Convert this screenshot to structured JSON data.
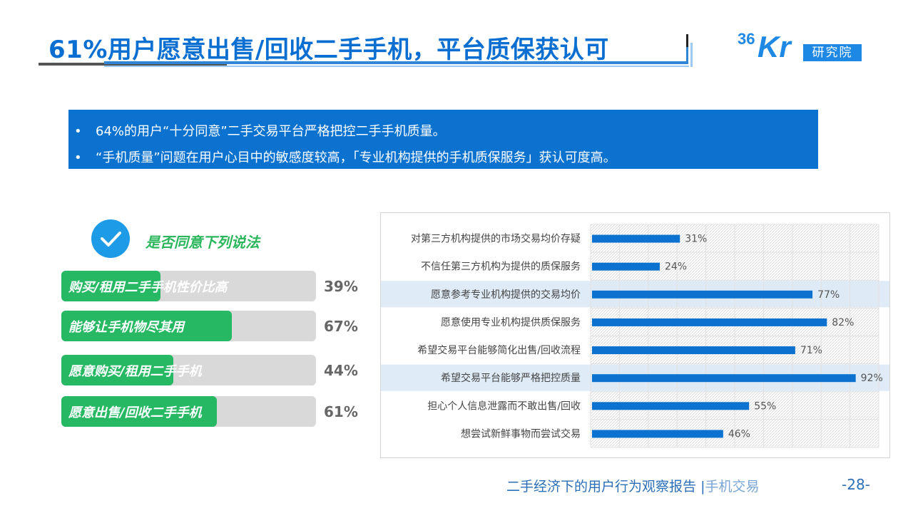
{
  "header": {
    "title": "61%用户愿意出售/回收二手手机，平台质保获认可",
    "logo_number": "36",
    "logo_letters": "Kr",
    "logo_badge": "研究院"
  },
  "summary": {
    "points": [
      "64%的用户“十分同意”二手交易平台严格把控二手手机质量。",
      "“手机质量”问题在用户心目中的敏感度较高，「专业机构提供的手机质保服务」获认可度高。"
    ]
  },
  "left_panel": {
    "question": "是否同意下列说法",
    "items": [
      {
        "label": "购买/租用二手手机性价比高",
        "value": 39,
        "value_text": "39%"
      },
      {
        "label": "能够让手机物尽其用",
        "value": 67,
        "value_text": "67%"
      },
      {
        "label": "愿意购买/租用二手手机",
        "value": 44,
        "value_text": "44%"
      },
      {
        "label": "愿意出售/回收二手手机",
        "value": 61,
        "value_text": "61%"
      }
    ]
  },
  "chart_data": {
    "type": "bar",
    "orientation": "horizontal",
    "categories": [
      "对第三方机构提供的市场交易均价存疑",
      "不信任第三方机构为提供的质保服务",
      "愿意参考专业机构提供的交易均价",
      "愿意使用专业机构提供质保服务",
      "希望交易平台能够简化出售/回收流程",
      "希望交易平台能够严格把控质量",
      "担心个人信息泄露而不敢出售/回收",
      "想尝试新鲜事物而尝试交易"
    ],
    "values": [
      31,
      24,
      77,
      82,
      71,
      92,
      55,
      46
    ],
    "data_labels": [
      "31%",
      "24%",
      "77%",
      "82%",
      "71%",
      "92%",
      "55%",
      "46%"
    ],
    "highlighted": [
      2,
      5
    ],
    "xlim": [
      0,
      100
    ],
    "bar_color": "#0b72d0",
    "highlight_color": "#dbe9f5"
  },
  "footer": {
    "report": "二手经济下的用户行为观察报告",
    "separator": "|",
    "category": "手机交易",
    "page": "-28-"
  }
}
